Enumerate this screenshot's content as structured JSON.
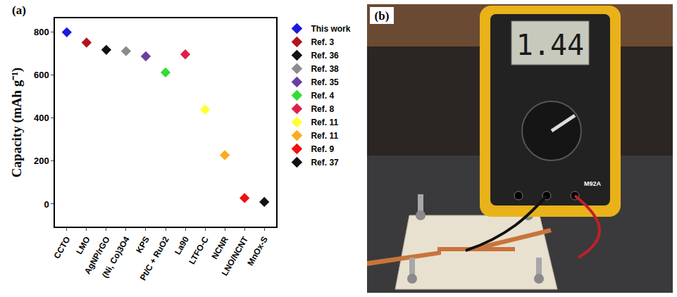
{
  "panel_labels": [
    "(a)",
    "(b)"
  ],
  "chart_data": {
    "type": "scatter",
    "y_label": "Capacity (mAh g⁻¹)",
    "categories": [
      "CCTO",
      "LMO",
      "AgNP/rGO",
      "(Ni, Co)3O4",
      "KPS",
      "Pt/C + RuO2",
      "La90",
      "LTFO-C",
      "NCNR",
      "LNO/NCNT",
      "MnOx-S"
    ],
    "series": [
      {
        "name": "This work",
        "color": "#1a1adf",
        "values": [
          800,
          null,
          null,
          null,
          null,
          null,
          null,
          null,
          null,
          null,
          null
        ]
      },
      {
        "name": "Ref. 3",
        "color": "#b3141c",
        "values": [
          null,
          752,
          null,
          null,
          null,
          null,
          null,
          null,
          null,
          null,
          null
        ]
      },
      {
        "name": "Ref. 36",
        "color": "#111111",
        "values": [
          null,
          null,
          718,
          null,
          null,
          null,
          null,
          null,
          null,
          null,
          null
        ]
      },
      {
        "name": "Ref. 38",
        "color": "#8c8c8c",
        "values": [
          null,
          null,
          null,
          712,
          null,
          null,
          null,
          null,
          null,
          null,
          null
        ]
      },
      {
        "name": "Ref. 35",
        "color": "#6b3fa0",
        "values": [
          null,
          null,
          null,
          null,
          688,
          null,
          null,
          null,
          null,
          null,
          null
        ]
      },
      {
        "name": "Ref. 4",
        "color": "#33dd33",
        "values": [
          null,
          null,
          null,
          null,
          null,
          613,
          null,
          null,
          null,
          null,
          null
        ]
      },
      {
        "name": "Ref. 8",
        "color": "#e0204a",
        "values": [
          null,
          null,
          null,
          null,
          null,
          null,
          697,
          null,
          null,
          null,
          null
        ]
      },
      {
        "name": "Ref. 11",
        "color": "#ffff33",
        "values": [
          null,
          null,
          null,
          null,
          null,
          null,
          null,
          440,
          null,
          null,
          null
        ]
      },
      {
        "name": "Ref. 11",
        "color": "#ffaa22",
        "values": [
          null,
          null,
          null,
          null,
          null,
          null,
          null,
          null,
          228,
          null,
          null
        ]
      },
      {
        "name": "Ref. 9",
        "color": "#ee1111",
        "values": [
          null,
          null,
          null,
          null,
          null,
          null,
          null,
          null,
          null,
          28,
          null
        ]
      },
      {
        "name": "Ref. 37",
        "color": "#111111",
        "values": [
          null,
          null,
          null,
          null,
          null,
          null,
          null,
          null,
          null,
          null,
          10
        ]
      }
    ],
    "marker": "diamond",
    "ylim": [
      -105,
      865
    ],
    "yticks": [
      0,
      200,
      400,
      600,
      800
    ],
    "grid": false,
    "legend": "right"
  },
  "photo": {
    "display": "1.44",
    "model": "M92A"
  }
}
